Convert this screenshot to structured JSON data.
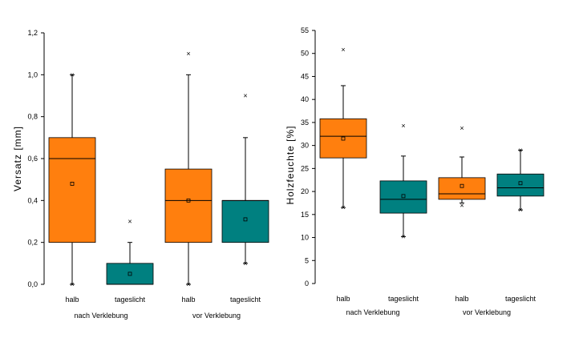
{
  "colors": {
    "halb": "#ff7f0e",
    "tageslicht": "#008080"
  },
  "chart_data": [
    {
      "type": "box",
      "title": "",
      "ylabel": "Versatz [mm]",
      "ylim": [
        0,
        1.2
      ],
      "yticks": [
        "0,0",
        "0,2",
        "0,4",
        "0,6",
        "0,8",
        "1,0",
        "1,2"
      ],
      "yticks_values": [
        0,
        0.2,
        0.4,
        0.6,
        0.8,
        1.0,
        1.2
      ],
      "groups": [
        {
          "label": "nach Verklebung",
          "categories": [
            "halb",
            "tageslicht"
          ]
        },
        {
          "label": "vor Verklebung",
          "categories": [
            "halb",
            "tageslicht"
          ]
        }
      ],
      "boxes": [
        {
          "category": "halb",
          "color_key": "halb",
          "whisker_low": 0.0,
          "q1": 0.2,
          "median": 0.6,
          "q3": 0.7,
          "whisker_high": 1.0,
          "mean": 0.48,
          "outliers": [
            1.0,
            0.0
          ]
        },
        {
          "category": "tageslicht",
          "color_key": "tageslicht",
          "whisker_low": 0.0,
          "q1": 0.0,
          "median": 0.0,
          "q3": 0.1,
          "whisker_high": 0.2,
          "mean": 0.05,
          "outliers": [
            0.3
          ]
        },
        {
          "category": "halb",
          "color_key": "halb",
          "whisker_low": 0.0,
          "q1": 0.2,
          "median": 0.4,
          "q3": 0.55,
          "whisker_high": 1.0,
          "mean": 0.4,
          "outliers": [
            1.1,
            0.0
          ]
        },
        {
          "category": "tageslicht",
          "color_key": "tageslicht",
          "whisker_low": 0.1,
          "q1": 0.2,
          "median": 0.4,
          "q3": 0.4,
          "whisker_high": 0.7,
          "mean": 0.31,
          "outliers": [
            0.9,
            0.1
          ]
        }
      ]
    },
    {
      "type": "box",
      "title": "",
      "ylabel": "Holzfeuchte [%]",
      "ylim": [
        0,
        55
      ],
      "yticks": [
        "0",
        "5",
        "10",
        "15",
        "20",
        "25",
        "30",
        "35",
        "40",
        "45",
        "50",
        "55"
      ],
      "yticks_values": [
        0,
        5,
        10,
        15,
        20,
        25,
        30,
        35,
        40,
        45,
        50,
        55
      ],
      "groups": [
        {
          "label": "nach Verklebung",
          "categories": [
            "halb",
            "tageslicht"
          ]
        },
        {
          "label": "vor Verklebung",
          "categories": [
            "halb",
            "tageslicht"
          ]
        }
      ],
      "boxes": [
        {
          "category": "halb",
          "color_key": "halb",
          "whisker_low": 16.5,
          "q1": 27.3,
          "median": 32.0,
          "q3": 35.8,
          "whisker_high": 43.0,
          "mean": 31.5,
          "outliers": [
            50.8,
            16.5
          ]
        },
        {
          "category": "tageslicht",
          "color_key": "tageslicht",
          "whisker_low": 10.2,
          "q1": 15.3,
          "median": 18.3,
          "q3": 22.3,
          "whisker_high": 27.7,
          "mean": 19.0,
          "outliers": [
            34.3,
            10.2
          ]
        },
        {
          "category": "halb",
          "color_key": "halb",
          "whisker_low": 17.5,
          "q1": 18.3,
          "median": 19.5,
          "q3": 23.0,
          "whisker_high": 27.5,
          "mean": 21.2,
          "outliers": [
            33.8,
            17.0
          ]
        },
        {
          "category": "tageslicht",
          "color_key": "tageslicht",
          "whisker_low": 16.0,
          "q1": 19.0,
          "median": 20.8,
          "q3": 23.8,
          "whisker_high": 29.0,
          "mean": 21.8,
          "outliers": [
            29.0,
            16.0
          ]
        }
      ]
    }
  ]
}
